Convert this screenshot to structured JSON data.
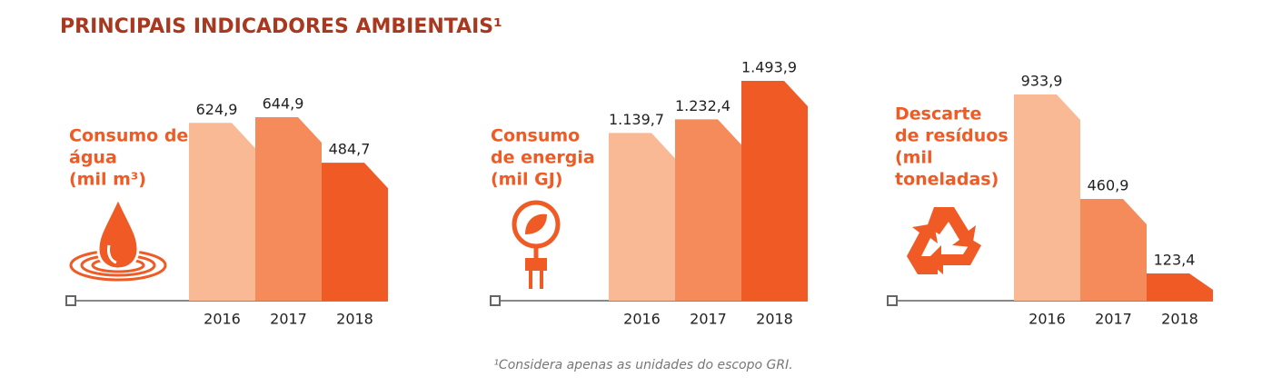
{
  "title": "PRINCIPAIS INDICADORES AMBIENTAIS¹",
  "footnote": "¹Considera apenas as unidades do escopo GRI.",
  "chart_data": [
    {
      "type": "bar",
      "title": [
        "Consumo de",
        "água",
        "(mil m³)"
      ],
      "categories": [
        "2016",
        "2017",
        "2018"
      ],
      "values": [
        624.9,
        644.9,
        484.7
      ],
      "value_labels": [
        "624,9",
        "644,9",
        "484,7"
      ],
      "colors": [
        "#f9b995",
        "#f58b5a",
        "#f05a24"
      ]
    },
    {
      "type": "bar",
      "title": [
        "Consumo",
        "de energia",
        "(mil GJ)"
      ],
      "categories": [
        "2016",
        "2017",
        "2018"
      ],
      "values": [
        1139.7,
        1232.4,
        1493.9
      ],
      "value_labels": [
        "1.139,7",
        "1.232,4",
        "1.493,9"
      ],
      "colors": [
        "#f9b995",
        "#f58b5a",
        "#f05a24"
      ]
    },
    {
      "type": "bar",
      "title": [
        "Descarte",
        "de resíduos",
        "(mil",
        "toneladas)"
      ],
      "categories": [
        "2016",
        "2017",
        "2018"
      ],
      "values": [
        933.9,
        460.9,
        123.4
      ],
      "value_labels": [
        "933,9",
        "460,9",
        "123,4"
      ],
      "colors": [
        "#f9b995",
        "#f58b5a",
        "#f05a24"
      ]
    }
  ]
}
